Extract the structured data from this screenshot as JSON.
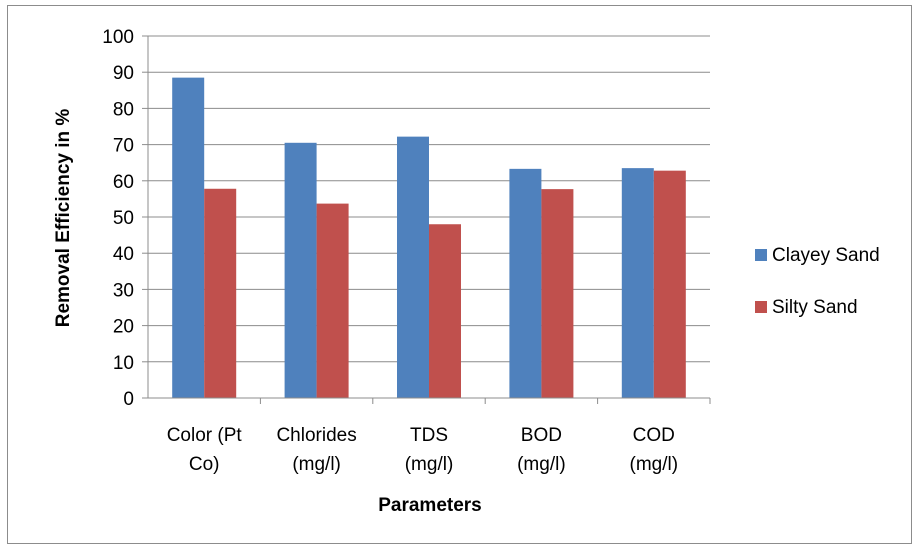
{
  "chart_data": {
    "type": "bar",
    "title": "",
    "xlabel": "Parameters",
    "ylabel": "Removal Efficiency in %",
    "ylim": [
      0,
      100
    ],
    "ytick_step": 10,
    "grid": true,
    "legend_position": "right",
    "categories": [
      [
        "Color (Pt",
        "Co)"
      ],
      [
        "Chlorides",
        "(mg/l)"
      ],
      [
        "TDS",
        "(mg/l)"
      ],
      [
        "BOD",
        "(mg/l)"
      ],
      [
        "COD",
        "(mg/l)"
      ]
    ],
    "series": [
      {
        "name": "Clayey Sand",
        "color": "#4f81bd",
        "values": [
          88.5,
          70.5,
          72.2,
          63.3,
          63.5
        ]
      },
      {
        "name": "Silty Sand",
        "color": "#c0504d",
        "values": [
          57.8,
          53.7,
          48.0,
          57.7,
          62.8
        ]
      }
    ]
  }
}
